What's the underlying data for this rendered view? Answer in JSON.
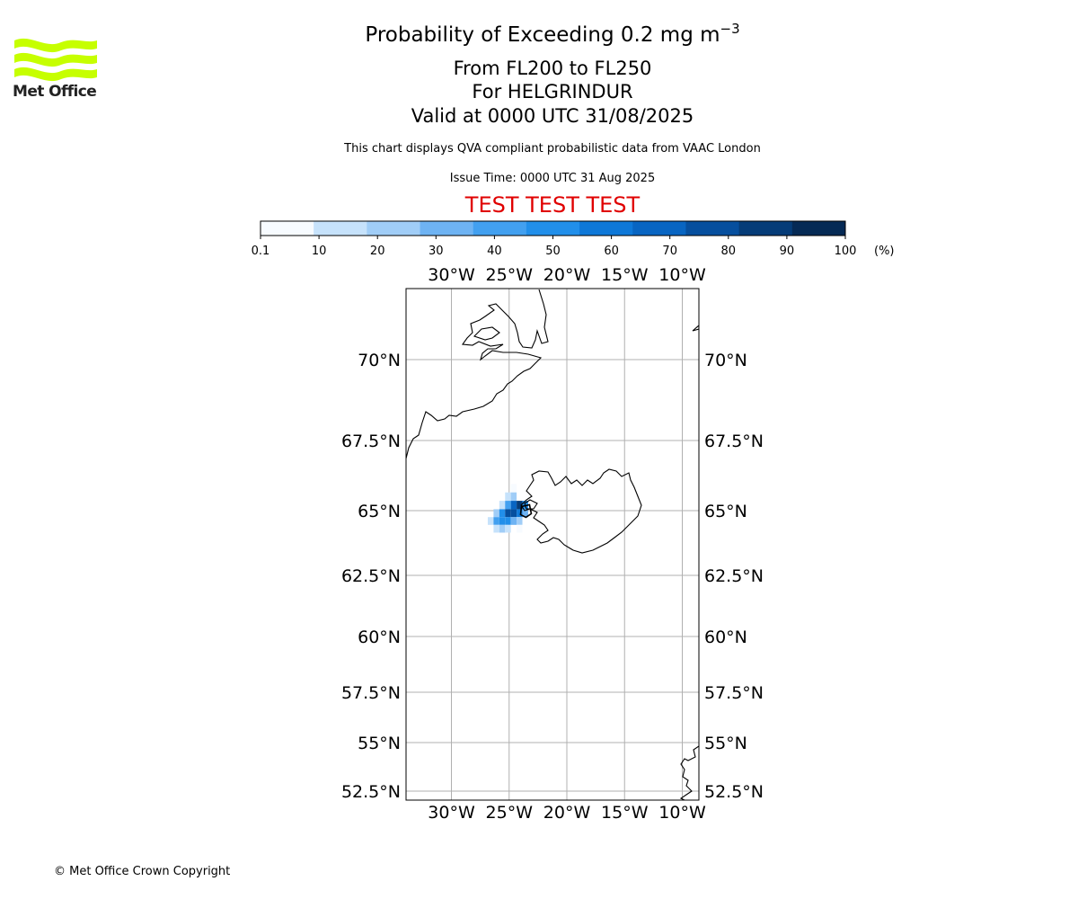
{
  "branding": {
    "logo_text": "Met Office",
    "logo_color": "#c6ff00"
  },
  "title": {
    "main_prefix": "Probability of Exceeding 0.2 mg m",
    "main_exponent": "−3",
    "flight_levels": "From FL200 to FL250",
    "location": "For HELGRINDUR",
    "valid": "Valid at 0000 UTC 31/08/2025"
  },
  "description": "This chart displays QVA compliant probabilistic data from VAAC London",
  "issue_time": "Issue Time: 0000 UTC 31 Aug 2025",
  "test_banner": "TEST TEST TEST",
  "footer": {
    "copyright": "© Met Office Crown Copyright"
  },
  "colorbar": {
    "unit": "(%)",
    "ticks": [
      "0.1",
      "10",
      "20",
      "30",
      "40",
      "50",
      "60",
      "70",
      "80",
      "90",
      "100"
    ],
    "colors": [
      "#f7fbff",
      "#c6e2fb",
      "#a0cdf7",
      "#6eb3f3",
      "#42a0f0",
      "#218fea",
      "#0e78d8",
      "#0865c2",
      "#064f9e",
      "#053c78",
      "#052a55"
    ]
  },
  "map": {
    "lon_labels": [
      "30°W",
      "25°W",
      "20°W",
      "15°W",
      "10°W"
    ],
    "lat_labels": [
      "70°N",
      "67.5°N",
      "65°N",
      "62.5°N",
      "60°N",
      "57.5°N",
      "55°N",
      "52.5°N"
    ],
    "grid": true,
    "extent": {
      "lon_min": -34,
      "lon_max": -8.5,
      "lat_min": 52.2,
      "lat_max": 72.2
    },
    "features": [
      "Greenland coast",
      "Iceland",
      "Scotland/Ireland coast"
    ],
    "volcano": "HELGRINDUR",
    "probability_field": [
      {
        "lon": -24.6,
        "lat": 65.8,
        "value": 5
      },
      {
        "lon": -25.1,
        "lat": 65.5,
        "value": 15
      },
      {
        "lon": -24.6,
        "lat": 65.5,
        "value": 25
      },
      {
        "lon": -25.6,
        "lat": 65.2,
        "value": 10
      },
      {
        "lon": -25.1,
        "lat": 65.2,
        "value": 45
      },
      {
        "lon": -24.6,
        "lat": 65.2,
        "value": 75
      },
      {
        "lon": -24.1,
        "lat": 65.2,
        "value": 90
      },
      {
        "lon": -23.6,
        "lat": 65.2,
        "value": 55
      },
      {
        "lon": -26.1,
        "lat": 64.9,
        "value": 20
      },
      {
        "lon": -25.6,
        "lat": 64.9,
        "value": 50
      },
      {
        "lon": -25.1,
        "lat": 64.9,
        "value": 80
      },
      {
        "lon": -24.6,
        "lat": 64.9,
        "value": 85
      },
      {
        "lon": -24.1,
        "lat": 64.9,
        "value": 65
      },
      {
        "lon": -23.6,
        "lat": 64.9,
        "value": 30
      },
      {
        "lon": -26.6,
        "lat": 64.6,
        "value": 10
      },
      {
        "lon": -26.1,
        "lat": 64.6,
        "value": 40
      },
      {
        "lon": -25.6,
        "lat": 64.6,
        "value": 55
      },
      {
        "lon": -25.1,
        "lat": 64.6,
        "value": 50
      },
      {
        "lon": -24.6,
        "lat": 64.6,
        "value": 35
      },
      {
        "lon": -24.1,
        "lat": 64.6,
        "value": 20
      },
      {
        "lon": -26.1,
        "lat": 64.3,
        "value": 15
      },
      {
        "lon": -25.6,
        "lat": 64.3,
        "value": 25
      },
      {
        "lon": -25.1,
        "lat": 64.3,
        "value": 15
      },
      {
        "lon": -24.1,
        "lat": 64.3,
        "value": 8
      }
    ]
  }
}
